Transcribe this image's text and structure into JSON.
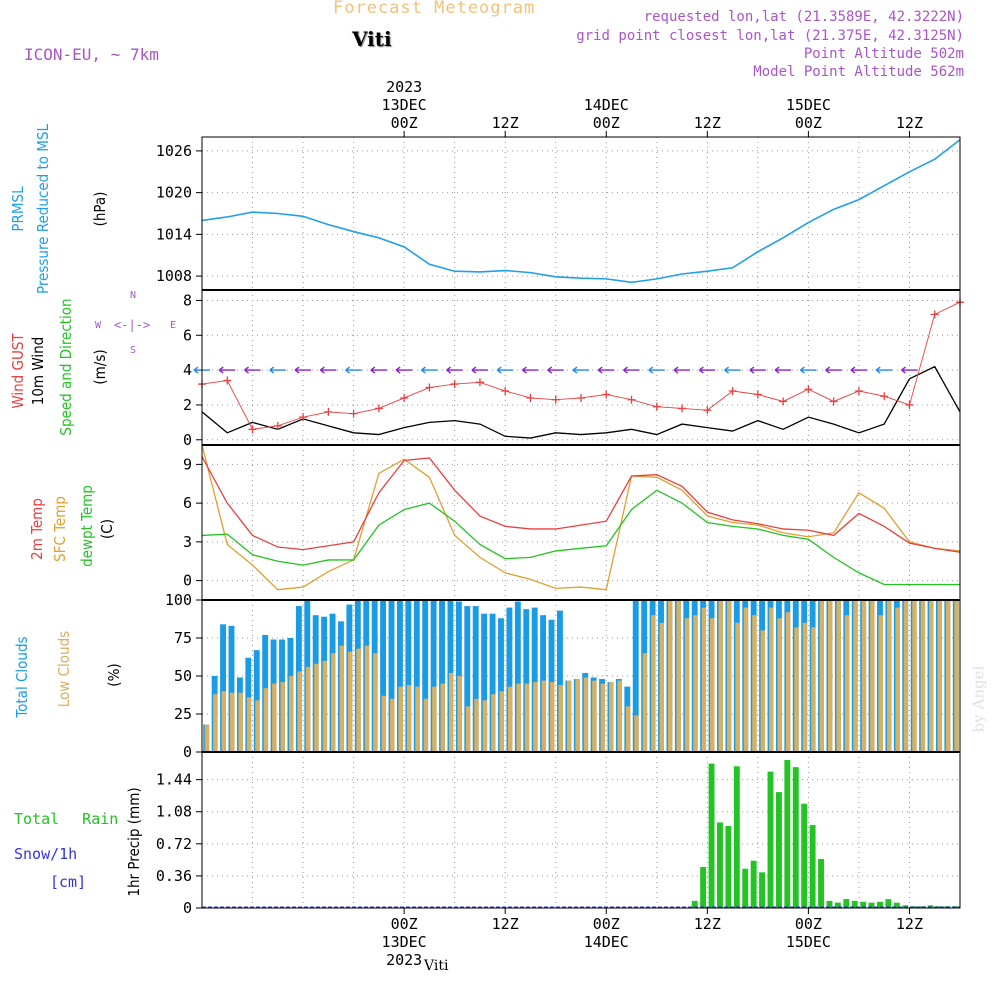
{
  "header": {
    "title": "Forecast Meteogram",
    "location": "Viti",
    "model": "ICON-EU, ~ 7km",
    "requested": "requested lon,lat (21.3589E, 42.3222N)",
    "gridpoint": "grid point closest lon,lat (21.375E, 42.3125N)",
    "point_altitude": "Point Altitude 502m",
    "model_altitude": "Model Point Altitude 562m",
    "footer_location": "Viti",
    "watermark": "by Angel"
  },
  "time_axis": {
    "top_labels": [
      {
        "h": 24,
        "lines": [
          "2023",
          "13DEC",
          "00Z"
        ]
      },
      {
        "h": 36,
        "lines": [
          "12Z"
        ]
      },
      {
        "h": 48,
        "lines": [
          "14DEC",
          "00Z"
        ]
      },
      {
        "h": 60,
        "lines": [
          "12Z"
        ]
      },
      {
        "h": 72,
        "lines": [
          "15DEC",
          "00Z"
        ]
      },
      {
        "h": 84,
        "lines": [
          "12Z"
        ]
      }
    ],
    "bottom_labels": [
      {
        "h": 24,
        "lines": [
          "00Z",
          "13DEC",
          "2023"
        ]
      },
      {
        "h": 36,
        "lines": [
          "12Z"
        ]
      },
      {
        "h": 48,
        "lines": [
          "00Z",
          "14DEC"
        ]
      },
      {
        "h": 60,
        "lines": [
          "12Z"
        ]
      },
      {
        "h": 72,
        "lines": [
          "00Z",
          "15DEC"
        ]
      },
      {
        "h": 84,
        "lines": [
          "12Z"
        ]
      }
    ]
  },
  "panel_labels": {
    "pressure": [
      "PRMSL",
      "Pressure Reduced to MSL",
      "(hPa)"
    ],
    "wind": [
      "Wind GUST",
      "10m Wind",
      "Speed and Direction",
      "(m/s)"
    ],
    "compass": {
      "n": "N",
      "s": "S",
      "w": "W",
      "e": "E",
      "glyph": "<-|->"
    },
    "temp": [
      "2m Temp",
      "SFC Temp",
      "dewpt Temp",
      "(C)"
    ],
    "clouds": [
      "Total Clouds",
      "Low Clouds",
      "(%)"
    ],
    "precip": [
      "Total Rain",
      "Snow/1h",
      "[cm]",
      "1hr Precip (mm)"
    ]
  },
  "colors": {
    "pressure": "#1fa0e6",
    "gust": "#e84040",
    "wind": "#000000",
    "temp2m": "#e84040",
    "sfc": "#e0a030",
    "dewpt": "#22c322",
    "total_clouds": "#1a9be6",
    "low_clouds": "#d8b060",
    "rain": "#22c322",
    "snow": "#3333dd",
    "purple": "#a855c8",
    "arrow_purple": "#8822cc",
    "arrow_blue": "#2288ee"
  },
  "chart_data": [
    {
      "type": "line",
      "name": "pressure",
      "xlabel": "hour",
      "ylabel": "(hPa)",
      "yticks": [
        1008,
        1014,
        1020,
        1026
      ],
      "ylim": [
        1006,
        1028
      ],
      "x": [
        0,
        3,
        6,
        9,
        12,
        15,
        18,
        21,
        24,
        27,
        30,
        33,
        36,
        39,
        42,
        45,
        48,
        51,
        54,
        57,
        60,
        63,
        66,
        69,
        72,
        75,
        78,
        81,
        84,
        87,
        90
      ],
      "values": [
        1016,
        1016.5,
        1017.2,
        1017,
        1016.6,
        1015.4,
        1014.4,
        1013.5,
        1012.2,
        1009.7,
        1008.7,
        1008.6,
        1008.8,
        1008.5,
        1007.9,
        1007.7,
        1007.6,
        1007.1,
        1007.6,
        1008.3,
        1008.7,
        1009.2,
        1011.5,
        1013.5,
        1015.7,
        1017.6,
        1019.0,
        1021.0,
        1023.0,
        1024.8,
        1027.6
      ]
    },
    {
      "type": "line",
      "name": "wind",
      "ylabel": "(m/s)",
      "yticks": [
        0,
        2,
        4,
        6,
        8
      ],
      "ylim": [
        -0.3,
        8.6
      ],
      "x": [
        0,
        3,
        6,
        9,
        12,
        15,
        18,
        21,
        24,
        27,
        30,
        33,
        36,
        39,
        42,
        45,
        48,
        51,
        54,
        57,
        60,
        63,
        66,
        69,
        72,
        75,
        78,
        81,
        84,
        87,
        90
      ],
      "gust": [
        3.2,
        3.4,
        0.6,
        0.8,
        1.3,
        1.6,
        1.5,
        1.8,
        2.4,
        3.0,
        3.2,
        3.3,
        2.8,
        2.4,
        2.3,
        2.4,
        2.6,
        2.3,
        1.9,
        1.8,
        1.7,
        2.8,
        2.6,
        2.2,
        2.9,
        2.2,
        2.8,
        2.5,
        2.0,
        7.2,
        7.9
      ],
      "speed": [
        1.6,
        0.4,
        1.0,
        0.6,
        1.2,
        0.8,
        0.4,
        0.3,
        0.7,
        1.0,
        1.1,
        0.9,
        0.2,
        0.1,
        0.4,
        0.3,
        0.4,
        0.6,
        0.3,
        0.9,
        0.7,
        0.5,
        1.1,
        0.6,
        1.3,
        0.9,
        0.4,
        0.9,
        3.5,
        4.2,
        1.6
      ]
    },
    {
      "type": "line",
      "name": "temperature",
      "ylabel": "(C)",
      "yticks": [
        0,
        3,
        6,
        9
      ],
      "ylim": [
        -1.5,
        10.5
      ],
      "x": [
        0,
        3,
        6,
        9,
        12,
        15,
        18,
        21,
        24,
        27,
        30,
        33,
        36,
        39,
        42,
        45,
        48,
        51,
        54,
        57,
        60,
        63,
        66,
        69,
        72,
        75,
        78,
        81,
        84,
        87,
        90
      ],
      "temp2m": [
        9.6,
        6.0,
        3.5,
        2.6,
        2.4,
        2.7,
        3.0,
        6.8,
        9.3,
        9.5,
        7.0,
        5.0,
        4.2,
        4.0,
        4.0,
        4.3,
        4.6,
        8.1,
        8.2,
        7.3,
        5.3,
        4.7,
        4.4,
        4.0,
        3.9,
        3.5,
        5.2,
        4.2,
        2.9,
        2.5,
        2.2
      ],
      "sfc": [
        10.5,
        2.8,
        1.2,
        -0.7,
        -0.5,
        0.7,
        1.6,
        8.3,
        9.4,
        8.0,
        3.5,
        1.8,
        0.6,
        0.1,
        -0.6,
        -0.5,
        -0.7,
        8.1,
        8.0,
        7.0,
        5.0,
        4.5,
        4.3,
        3.7,
        3.4,
        3.7,
        6.8,
        5.6,
        3.0,
        2.5,
        2.3
      ],
      "dewpt": [
        3.5,
        3.6,
        2.0,
        1.5,
        1.2,
        1.6,
        1.6,
        4.3,
        5.5,
        6.0,
        4.6,
        2.8,
        1.7,
        1.8,
        2.3,
        2.5,
        2.7,
        5.5,
        7.0,
        6.0,
        4.5,
        4.2,
        4.0,
        3.5,
        3.2,
        1.8,
        0.6,
        -0.3,
        -0.3,
        -0.3,
        -0.3
      ]
    },
    {
      "type": "bar",
      "name": "clouds",
      "ylabel": "(%)",
      "yticks": [
        0,
        25,
        50,
        75,
        100
      ],
      "ylim": [
        0,
        100
      ],
      "hours": [
        0,
        1,
        2,
        3,
        4,
        5,
        6,
        7,
        8,
        9,
        10,
        11,
        12,
        13,
        14,
        15,
        16,
        17,
        18,
        19,
        20,
        21,
        22,
        23,
        24,
        25,
        26,
        27,
        28,
        29,
        30,
        31,
        32,
        33,
        34,
        35,
        36,
        37,
        38,
        39,
        40,
        41,
        42,
        43,
        44,
        45,
        46,
        47,
        48,
        49,
        50,
        51,
        52,
        53,
        54,
        55,
        56,
        57,
        58,
        59,
        60,
        61,
        62,
        63,
        64,
        65,
        66,
        67,
        68,
        69,
        70,
        71,
        72,
        73,
        74,
        75,
        76,
        77,
        78,
        79,
        80,
        81,
        82,
        83,
        84,
        85,
        86,
        87,
        88,
        89
      ],
      "total": [
        18,
        50,
        84,
        83,
        49,
        62,
        67,
        77,
        74,
        74,
        75,
        96,
        100,
        90,
        89,
        91,
        86,
        97,
        100,
        100,
        100,
        100,
        100,
        100,
        100,
        100,
        100,
        100,
        100,
        100,
        99,
        96,
        96,
        91,
        91,
        88,
        95,
        99,
        94,
        95,
        90,
        87,
        93,
        47,
        48,
        52,
        49,
        48,
        46,
        48,
        43,
        100,
        100,
        100,
        100,
        100,
        100,
        100,
        100,
        100,
        100,
        100,
        100,
        100,
        100,
        100,
        100,
        100,
        100,
        100,
        100,
        100,
        100,
        100,
        100,
        100,
        100,
        100,
        100,
        100,
        100,
        100,
        100,
        100,
        100,
        100,
        100,
        100,
        100,
        100
      ],
      "low": [
        18,
        38,
        40,
        39,
        39,
        36,
        34,
        42,
        45,
        46,
        50,
        53,
        56,
        58,
        60,
        65,
        70,
        66,
        68,
        70,
        65,
        37,
        35,
        43,
        44,
        43,
        35,
        43,
        45,
        52,
        50,
        30,
        35,
        34,
        38,
        40,
        43,
        45,
        45,
        46,
        47,
        46,
        44,
        47,
        48,
        49,
        47,
        45,
        46,
        47,
        30,
        24,
        65,
        90,
        85,
        100,
        100,
        88,
        90,
        95,
        88,
        100,
        100,
        85,
        95,
        90,
        80,
        95,
        88,
        92,
        82,
        85,
        82,
        100,
        100,
        100,
        90,
        100,
        100,
        100,
        90,
        100,
        95,
        100,
        100,
        100,
        100,
        100,
        100,
        100
      ]
    },
    {
      "type": "bar",
      "name": "precip",
      "ylabel": "1hr Precip (mm)",
      "yticks": [
        0,
        0.36,
        0.72,
        1.08,
        1.44
      ],
      "ylim": [
        0,
        1.75
      ],
      "hours": [
        58,
        59,
        60,
        61,
        62,
        63,
        64,
        65,
        66,
        67,
        68,
        69,
        70,
        71,
        72,
        73,
        74,
        75,
        76,
        77,
        78,
        79,
        80,
        81,
        82,
        83,
        84,
        85,
        86,
        87,
        88,
        89
      ],
      "values": [
        0.08,
        0.46,
        1.62,
        0.96,
        0.92,
        1.59,
        0.44,
        0.53,
        0.4,
        1.53,
        1.3,
        1.66,
        1.58,
        1.17,
        0.93,
        0.55,
        0.08,
        0.06,
        0.1,
        0.08,
        0.07,
        0.06,
        0.07,
        0.1,
        0.06,
        0.03,
        0.02,
        0.02,
        0.03,
        0.02,
        0.02,
        0.02
      ]
    }
  ]
}
